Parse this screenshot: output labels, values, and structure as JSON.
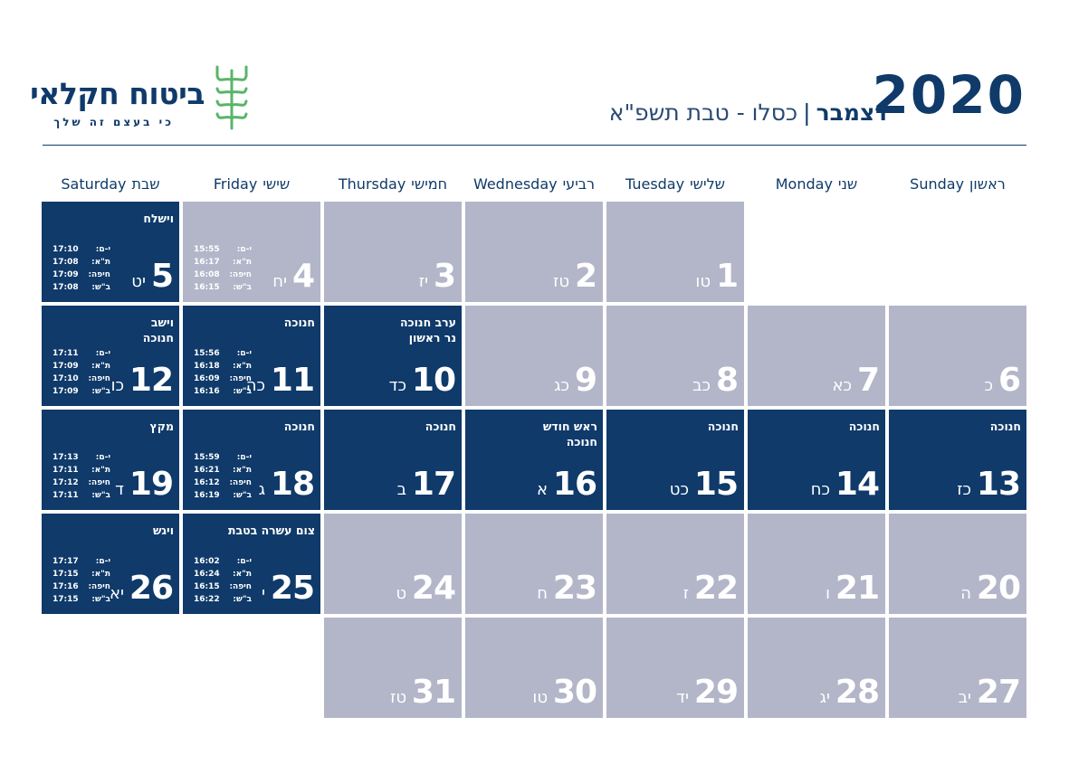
{
  "brand": {
    "name": "ביטוח חקלאי",
    "tagline": "כי בעצם זה שלך",
    "icon": "wheat-icon",
    "icon_color": "#5ab46a"
  },
  "header": {
    "year": "2020",
    "month": "דצמבר",
    "separator": "|",
    "hebrew_months": "כסלו - טבת תשפ\"א"
  },
  "colors": {
    "primary": "#0f3a6a",
    "cell_light": "#b3b6c9",
    "cell_dark": "#0f3a6a",
    "text_on_cell": "#ffffff"
  },
  "weekdays": [
    {
      "en": "Sunday",
      "he": "ראשון"
    },
    {
      "en": "Monday",
      "he": "שני"
    },
    {
      "en": "Tuesday",
      "he": "שלישי"
    },
    {
      "en": "Wednesday",
      "he": "רביעי"
    },
    {
      "en": "Thursday",
      "he": "חמישי"
    },
    {
      "en": "Friday",
      "he": "שישי"
    },
    {
      "en": "Saturday",
      "he": "שבת"
    }
  ],
  "days": [
    {
      "day": "1",
      "heb": "טו",
      "dark": false
    },
    {
      "day": "2",
      "heb": "טז",
      "dark": false
    },
    {
      "day": "3",
      "heb": "יז",
      "dark": false
    },
    {
      "day": "4",
      "heb": "יח",
      "dark": false,
      "times": [
        [
          "י-ם:",
          "15:55"
        ],
        [
          "ת\"א:",
          "16:17"
        ],
        [
          "חיפה:",
          "16:08"
        ],
        [
          "ב\"ש:",
          "16:15"
        ]
      ]
    },
    {
      "day": "5",
      "heb": "יט",
      "dark": true,
      "note": "וישלח",
      "times": [
        [
          "י-ם:",
          "17:10"
        ],
        [
          "ת\"א:",
          "17:08"
        ],
        [
          "חיפה:",
          "17:09"
        ],
        [
          "ב\"ש:",
          "17:08"
        ]
      ]
    },
    {
      "day": "6",
      "heb": "כ",
      "dark": false
    },
    {
      "day": "7",
      "heb": "כא",
      "dark": false
    },
    {
      "day": "8",
      "heb": "כב",
      "dark": false
    },
    {
      "day": "9",
      "heb": "כג",
      "dark": false
    },
    {
      "day": "10",
      "heb": "כד",
      "dark": true,
      "note": "ערב חנוכה\nנר ראשון"
    },
    {
      "day": "11",
      "heb": "כה",
      "dark": true,
      "note": "חנוכה",
      "times": [
        [
          "י-ם:",
          "15:56"
        ],
        [
          "ת\"א:",
          "16:18"
        ],
        [
          "חיפה:",
          "16:09"
        ],
        [
          "ב\"ש:",
          "16:16"
        ]
      ]
    },
    {
      "day": "12",
      "heb": "כו",
      "dark": true,
      "note": "וישב\nחנוכה",
      "times": [
        [
          "י-ם:",
          "17:11"
        ],
        [
          "ת\"א:",
          "17:09"
        ],
        [
          "חיפה:",
          "17:10"
        ],
        [
          "ב\"ש:",
          "17:09"
        ]
      ]
    },
    {
      "day": "13",
      "heb": "כז",
      "dark": true,
      "note": "חנוכה"
    },
    {
      "day": "14",
      "heb": "כח",
      "dark": true,
      "note": "חנוכה"
    },
    {
      "day": "15",
      "heb": "כט",
      "dark": true,
      "note": "חנוכה"
    },
    {
      "day": "16",
      "heb": "א",
      "dark": true,
      "note": "ראש חודש\nחנוכה"
    },
    {
      "day": "17",
      "heb": "ב",
      "dark": true,
      "note": "חנוכה"
    },
    {
      "day": "18",
      "heb": "ג",
      "dark": true,
      "note": "חנוכה",
      "times": [
        [
          "י-ם:",
          "15:59"
        ],
        [
          "ת\"א:",
          "16:21"
        ],
        [
          "חיפה:",
          "16:12"
        ],
        [
          "ב\"ש:",
          "16:19"
        ]
      ]
    },
    {
      "day": "19",
      "heb": "ד",
      "dark": true,
      "note": "מקץ",
      "times": [
        [
          "י-ם:",
          "17:13"
        ],
        [
          "ת\"א:",
          "17:11"
        ],
        [
          "חיפה:",
          "17:12"
        ],
        [
          "ב\"ש:",
          "17:11"
        ]
      ]
    },
    {
      "day": "20",
      "heb": "ה",
      "dark": false
    },
    {
      "day": "21",
      "heb": "ו",
      "dark": false
    },
    {
      "day": "22",
      "heb": "ז",
      "dark": false
    },
    {
      "day": "23",
      "heb": "ח",
      "dark": false
    },
    {
      "day": "24",
      "heb": "ט",
      "dark": false
    },
    {
      "day": "25",
      "heb": "י",
      "dark": true,
      "note": "צום עשרה בטבת",
      "times": [
        [
          "י-ם:",
          "16:02"
        ],
        [
          "ת\"א:",
          "16:24"
        ],
        [
          "חיפה:",
          "16:15"
        ],
        [
          "ב\"ש:",
          "16:22"
        ]
      ]
    },
    {
      "day": "26",
      "heb": "יא",
      "dark": true,
      "note": "ויגש",
      "times": [
        [
          "י-ם:",
          "17:17"
        ],
        [
          "ת\"א:",
          "17:15"
        ],
        [
          "חיפה:",
          "17:16"
        ],
        [
          "ב\"ש:",
          "17:15"
        ]
      ]
    },
    {
      "day": "27",
      "heb": "יב",
      "dark": false
    },
    {
      "day": "28",
      "heb": "יג",
      "dark": false
    },
    {
      "day": "29",
      "heb": "יד",
      "dark": false
    },
    {
      "day": "30",
      "heb": "טו",
      "dark": false
    },
    {
      "day": "31",
      "heb": "טז",
      "dark": false
    }
  ]
}
